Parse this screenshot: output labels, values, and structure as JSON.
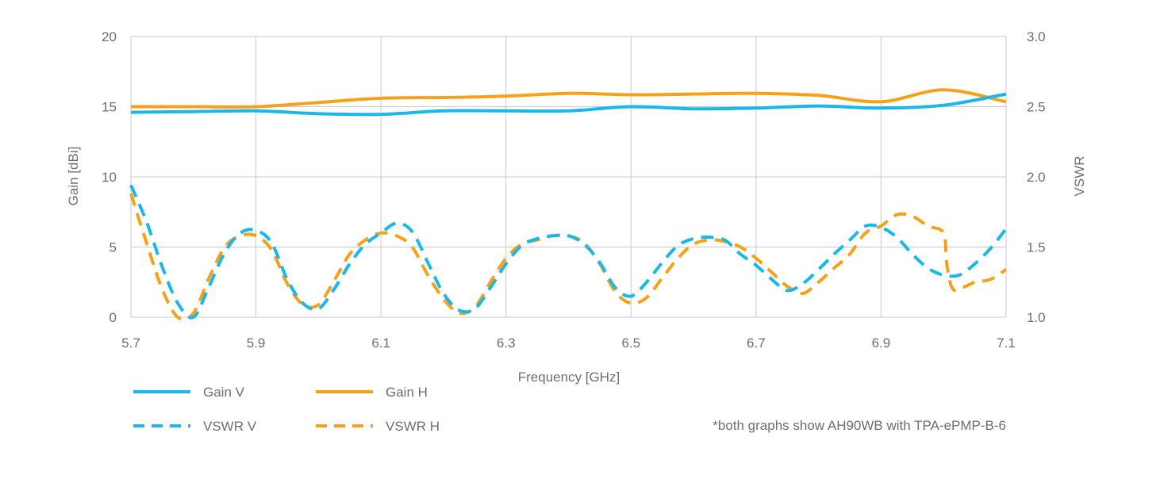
{
  "chart_data": {
    "type": "line",
    "xlabel": "Frequency [GHz]",
    "ylabel_left": "Gain [dBi]",
    "ylabel_right": "VSWR",
    "xlim": [
      5.7,
      7.1
    ],
    "ylim_left": [
      0,
      20
    ],
    "ylim_right": [
      1.0,
      3.0
    ],
    "x_ticks": [
      "5.7",
      "5.9",
      "6.1",
      "6.3",
      "6.5",
      "6.7",
      "6.9",
      "7.1"
    ],
    "y_ticks_left": [
      "0",
      "5",
      "10",
      "15",
      "20"
    ],
    "y_ticks_right": [
      "1.0",
      "1.5",
      "2.0",
      "2.5",
      "3.0"
    ],
    "grid": true,
    "legend_position": "bottom-left",
    "footnote": "*both graphs show AH90WB with TPA-ePMP-B-6",
    "series": [
      {
        "name": "Gain V",
        "axis": "left",
        "style": "solid",
        "color": "#1ab7ea",
        "x": [
          5.7,
          5.8,
          5.9,
          6.0,
          6.1,
          6.2,
          6.3,
          6.4,
          6.5,
          6.6,
          6.7,
          6.8,
          6.9,
          7.0,
          7.1
        ],
        "y": [
          14.6,
          14.65,
          14.7,
          14.5,
          14.45,
          14.7,
          14.7,
          14.7,
          15.0,
          14.85,
          14.9,
          15.05,
          14.9,
          15.1,
          15.9
        ]
      },
      {
        "name": "Gain H",
        "axis": "left",
        "style": "solid",
        "color": "#f7a11a",
        "x": [
          5.7,
          5.8,
          5.9,
          6.0,
          6.1,
          6.2,
          6.3,
          6.4,
          6.5,
          6.6,
          6.7,
          6.8,
          6.9,
          7.0,
          7.1
        ],
        "y": [
          15.0,
          15.0,
          15.0,
          15.3,
          15.6,
          15.65,
          15.75,
          15.95,
          15.85,
          15.9,
          15.95,
          15.8,
          15.35,
          16.2,
          15.35
        ]
      },
      {
        "name": "VSWR V",
        "axis": "right",
        "style": "dashed",
        "color": "#1ab7ea",
        "x": [
          5.7,
          5.725,
          5.75,
          5.775,
          5.8,
          5.825,
          5.85,
          5.875,
          5.9,
          5.925,
          5.95,
          5.975,
          6.0,
          6.025,
          6.05,
          6.075,
          6.1,
          6.125,
          6.15,
          6.175,
          6.2,
          6.225,
          6.25,
          6.275,
          6.3,
          6.325,
          6.35,
          6.375,
          6.4,
          6.425,
          6.45,
          6.475,
          6.5,
          6.525,
          6.55,
          6.575,
          6.6,
          6.625,
          6.65,
          6.675,
          6.7,
          6.725,
          6.75,
          6.775,
          6.8,
          6.825,
          6.85,
          6.875,
          6.9,
          6.925,
          6.95,
          6.975,
          7.0,
          7.025,
          7.05,
          7.075,
          7.1
        ],
        "y": [
          1.94,
          1.68,
          1.36,
          1.1,
          1.0,
          1.22,
          1.46,
          1.6,
          1.62,
          1.53,
          1.27,
          1.1,
          1.06,
          1.2,
          1.38,
          1.52,
          1.6,
          1.67,
          1.61,
          1.39,
          1.17,
          1.05,
          1.06,
          1.21,
          1.38,
          1.51,
          1.56,
          1.58,
          1.58,
          1.52,
          1.39,
          1.21,
          1.15,
          1.25,
          1.39,
          1.51,
          1.56,
          1.57,
          1.55,
          1.45,
          1.37,
          1.27,
          1.19,
          1.24,
          1.34,
          1.45,
          1.55,
          1.65,
          1.64,
          1.57,
          1.45,
          1.35,
          1.3,
          1.3,
          1.38,
          1.49,
          1.63
        ]
      },
      {
        "name": "VSWR H",
        "axis": "right",
        "style": "dashed",
        "color": "#f7a11a",
        "x": [
          5.7,
          5.725,
          5.75,
          5.775,
          5.8,
          5.825,
          5.85,
          5.875,
          5.9,
          5.925,
          5.95,
          5.975,
          6.0,
          6.025,
          6.05,
          6.075,
          6.1,
          6.125,
          6.15,
          6.175,
          6.2,
          6.225,
          6.25,
          6.275,
          6.3,
          6.325,
          6.35,
          6.375,
          6.4,
          6.425,
          6.45,
          6.475,
          6.5,
          6.525,
          6.55,
          6.575,
          6.6,
          6.625,
          6.65,
          6.675,
          6.7,
          6.725,
          6.75,
          6.775,
          6.8,
          6.825,
          6.85,
          6.875,
          6.9,
          6.925,
          6.95,
          6.975,
          7.0,
          7.005,
          7.015,
          7.035,
          7.05,
          7.075,
          7.1
        ],
        "y": [
          1.88,
          1.53,
          1.2,
          1.0,
          1.03,
          1.28,
          1.5,
          1.58,
          1.58,
          1.48,
          1.24,
          1.09,
          1.09,
          1.26,
          1.45,
          1.55,
          1.6,
          1.58,
          1.5,
          1.3,
          1.13,
          1.03,
          1.07,
          1.25,
          1.42,
          1.52,
          1.55,
          1.58,
          1.58,
          1.53,
          1.38,
          1.18,
          1.1,
          1.14,
          1.28,
          1.42,
          1.52,
          1.55,
          1.54,
          1.5,
          1.42,
          1.32,
          1.22,
          1.17,
          1.25,
          1.35,
          1.45,
          1.6,
          1.65,
          1.73,
          1.72,
          1.65,
          1.6,
          1.38,
          1.2,
          1.22,
          1.25,
          1.27,
          1.34
        ]
      }
    ]
  }
}
